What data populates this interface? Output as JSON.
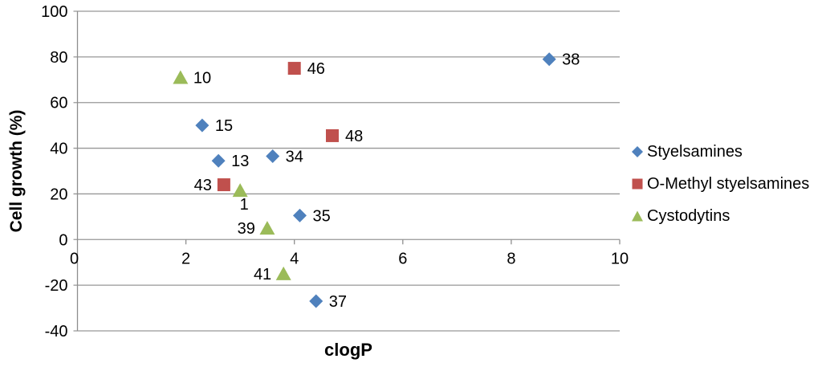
{
  "chart_data": {
    "type": "scatter",
    "title": "",
    "xlabel": "clogP",
    "ylabel": "Cell growth (%)",
    "xlim": [
      0,
      10
    ],
    "ylim": [
      -40,
      100
    ],
    "xticks": [
      0,
      2,
      4,
      6,
      8,
      10
    ],
    "yticks": [
      100,
      80,
      60,
      40,
      20,
      0,
      -20,
      -40
    ],
    "grid": "horizontal",
    "legend_position": "right",
    "colors": {
      "grid": "#979797",
      "axis": "#8e8e8e",
      "text": "#000000"
    },
    "series": [
      {
        "name": "Styelsamines",
        "marker": "diamond",
        "color": "#4F81BD",
        "points": [
          {
            "label": "15",
            "x": 2.3,
            "y": 50,
            "label_side": "right"
          },
          {
            "label": "13",
            "x": 2.6,
            "y": 34.5,
            "label_side": "right"
          },
          {
            "label": "34",
            "x": 3.6,
            "y": 36.5,
            "label_side": "right"
          },
          {
            "label": "35",
            "x": 4.1,
            "y": 10.5,
            "label_side": "right"
          },
          {
            "label": "37",
            "x": 4.4,
            "y": -27,
            "label_side": "right"
          },
          {
            "label": "38",
            "x": 8.7,
            "y": 79,
            "label_side": "right"
          }
        ]
      },
      {
        "name": "O-Methyl styelsamines",
        "marker": "square",
        "color": "#C0504D",
        "points": [
          {
            "label": "43",
            "x": 2.7,
            "y": 24,
            "label_side": "left"
          },
          {
            "label": "46",
            "x": 4.0,
            "y": 75,
            "label_side": "right"
          },
          {
            "label": "48",
            "x": 4.7,
            "y": 45.5,
            "label_side": "right"
          }
        ]
      },
      {
        "name": "Cystodytins",
        "marker": "triangle",
        "color": "#9BBB59",
        "points": [
          {
            "label": "10",
            "x": 1.9,
            "y": 71,
            "label_side": "right"
          },
          {
            "label": "1",
            "x": 3.0,
            "y": 21.5,
            "label_side": "below"
          },
          {
            "label": "39",
            "x": 3.5,
            "y": 5,
            "label_side": "left"
          },
          {
            "label": "41",
            "x": 3.8,
            "y": -15,
            "label_side": "left"
          }
        ]
      }
    ]
  }
}
